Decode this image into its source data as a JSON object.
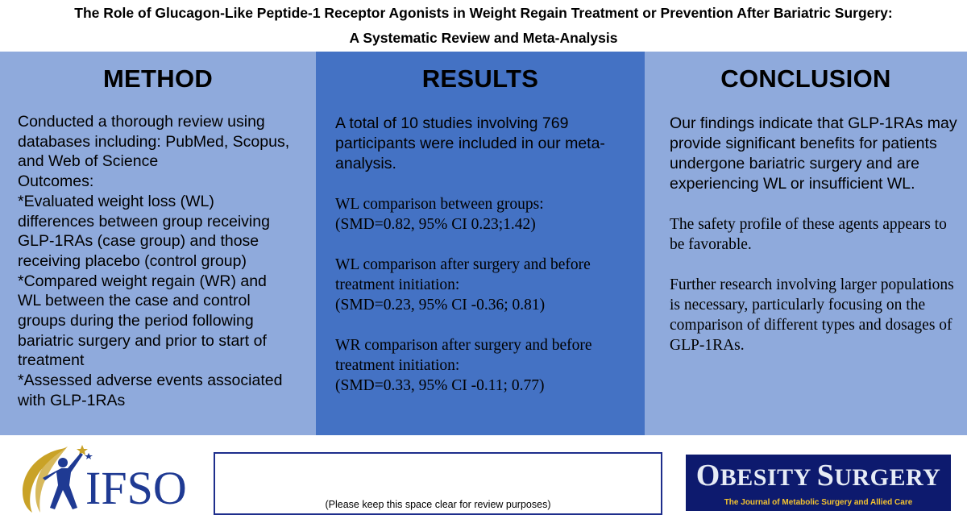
{
  "title": {
    "line1": "The Role of Glucagon-Like Peptide-1 Receptor Agonists in Weight Regain Treatment or Prevention After Bariatric Surgery:",
    "line2": "A Systematic Review and Meta-Analysis"
  },
  "method": {
    "heading": "METHOD",
    "lines": [
      "Conducted a thorough review using",
      "databases including: PubMed, Scopus,",
      "and Web of Science",
      "Outcomes:",
      "*Evaluated weight loss (WL)",
      "differences between group receiving",
      "GLP-1RAs (case group) and those",
      "receiving placebo (control group)",
      "*Compared weight regain (WR) and",
      "WL between the case and control",
      "groups during the period following",
      "bariatric surgery and prior to start of",
      "treatment",
      "*Assessed adverse events associated",
      "with GLP-1RAs"
    ]
  },
  "results": {
    "heading": "RESULTS",
    "intro": "A total of 10 studies involving 769 participants were included in our meta-analysis.",
    "blocks": [
      {
        "label": "WL comparison between groups:",
        "value": "(SMD=0.82, 95% CI 0.23;1.42)"
      },
      {
        "label": "WL comparison after surgery and before treatment initiation:",
        "value": "(SMD=0.23, 95% CI -0.36; 0.81)"
      },
      {
        "label": "WR comparison after surgery and before treatment initiation:",
        "value": "(SMD=0.33, 95% CI -0.11; 0.77)"
      }
    ]
  },
  "conclusion": {
    "heading": "CONCLUSION",
    "intro": "Our findings indicate that GLP-1RAs may provide significant benefits for patients undergone bariatric surgery and are experiencing WL or insufficient WL.",
    "paragraphs": [
      "The safety profile of these agents appears to be favorable.",
      "Further research involving larger populations is necessary, particularly focusing on the comparison of different types and dosages of GLP-1RAs."
    ]
  },
  "footer": {
    "ifso_logo_text": "IFSO",
    "review_note": "(Please keep this space clear for review purposes)",
    "journal_title": "Obesity Surgery",
    "journal_title_display": {
      "big1": "O",
      "small1": "BESITY ",
      "big2": "S",
      "small2": "URGERY"
    },
    "journal_subtitle": "The Journal of Metabolic Surgery and Allied Care"
  },
  "colors": {
    "panel_light": "#8faadc",
    "panel_dark": "#4472c4",
    "ifso_blue": "#1f3a93",
    "ifso_gold": "#c9a227",
    "journal_navy": "#0d1a6e",
    "journal_gold": "#f2c230"
  }
}
